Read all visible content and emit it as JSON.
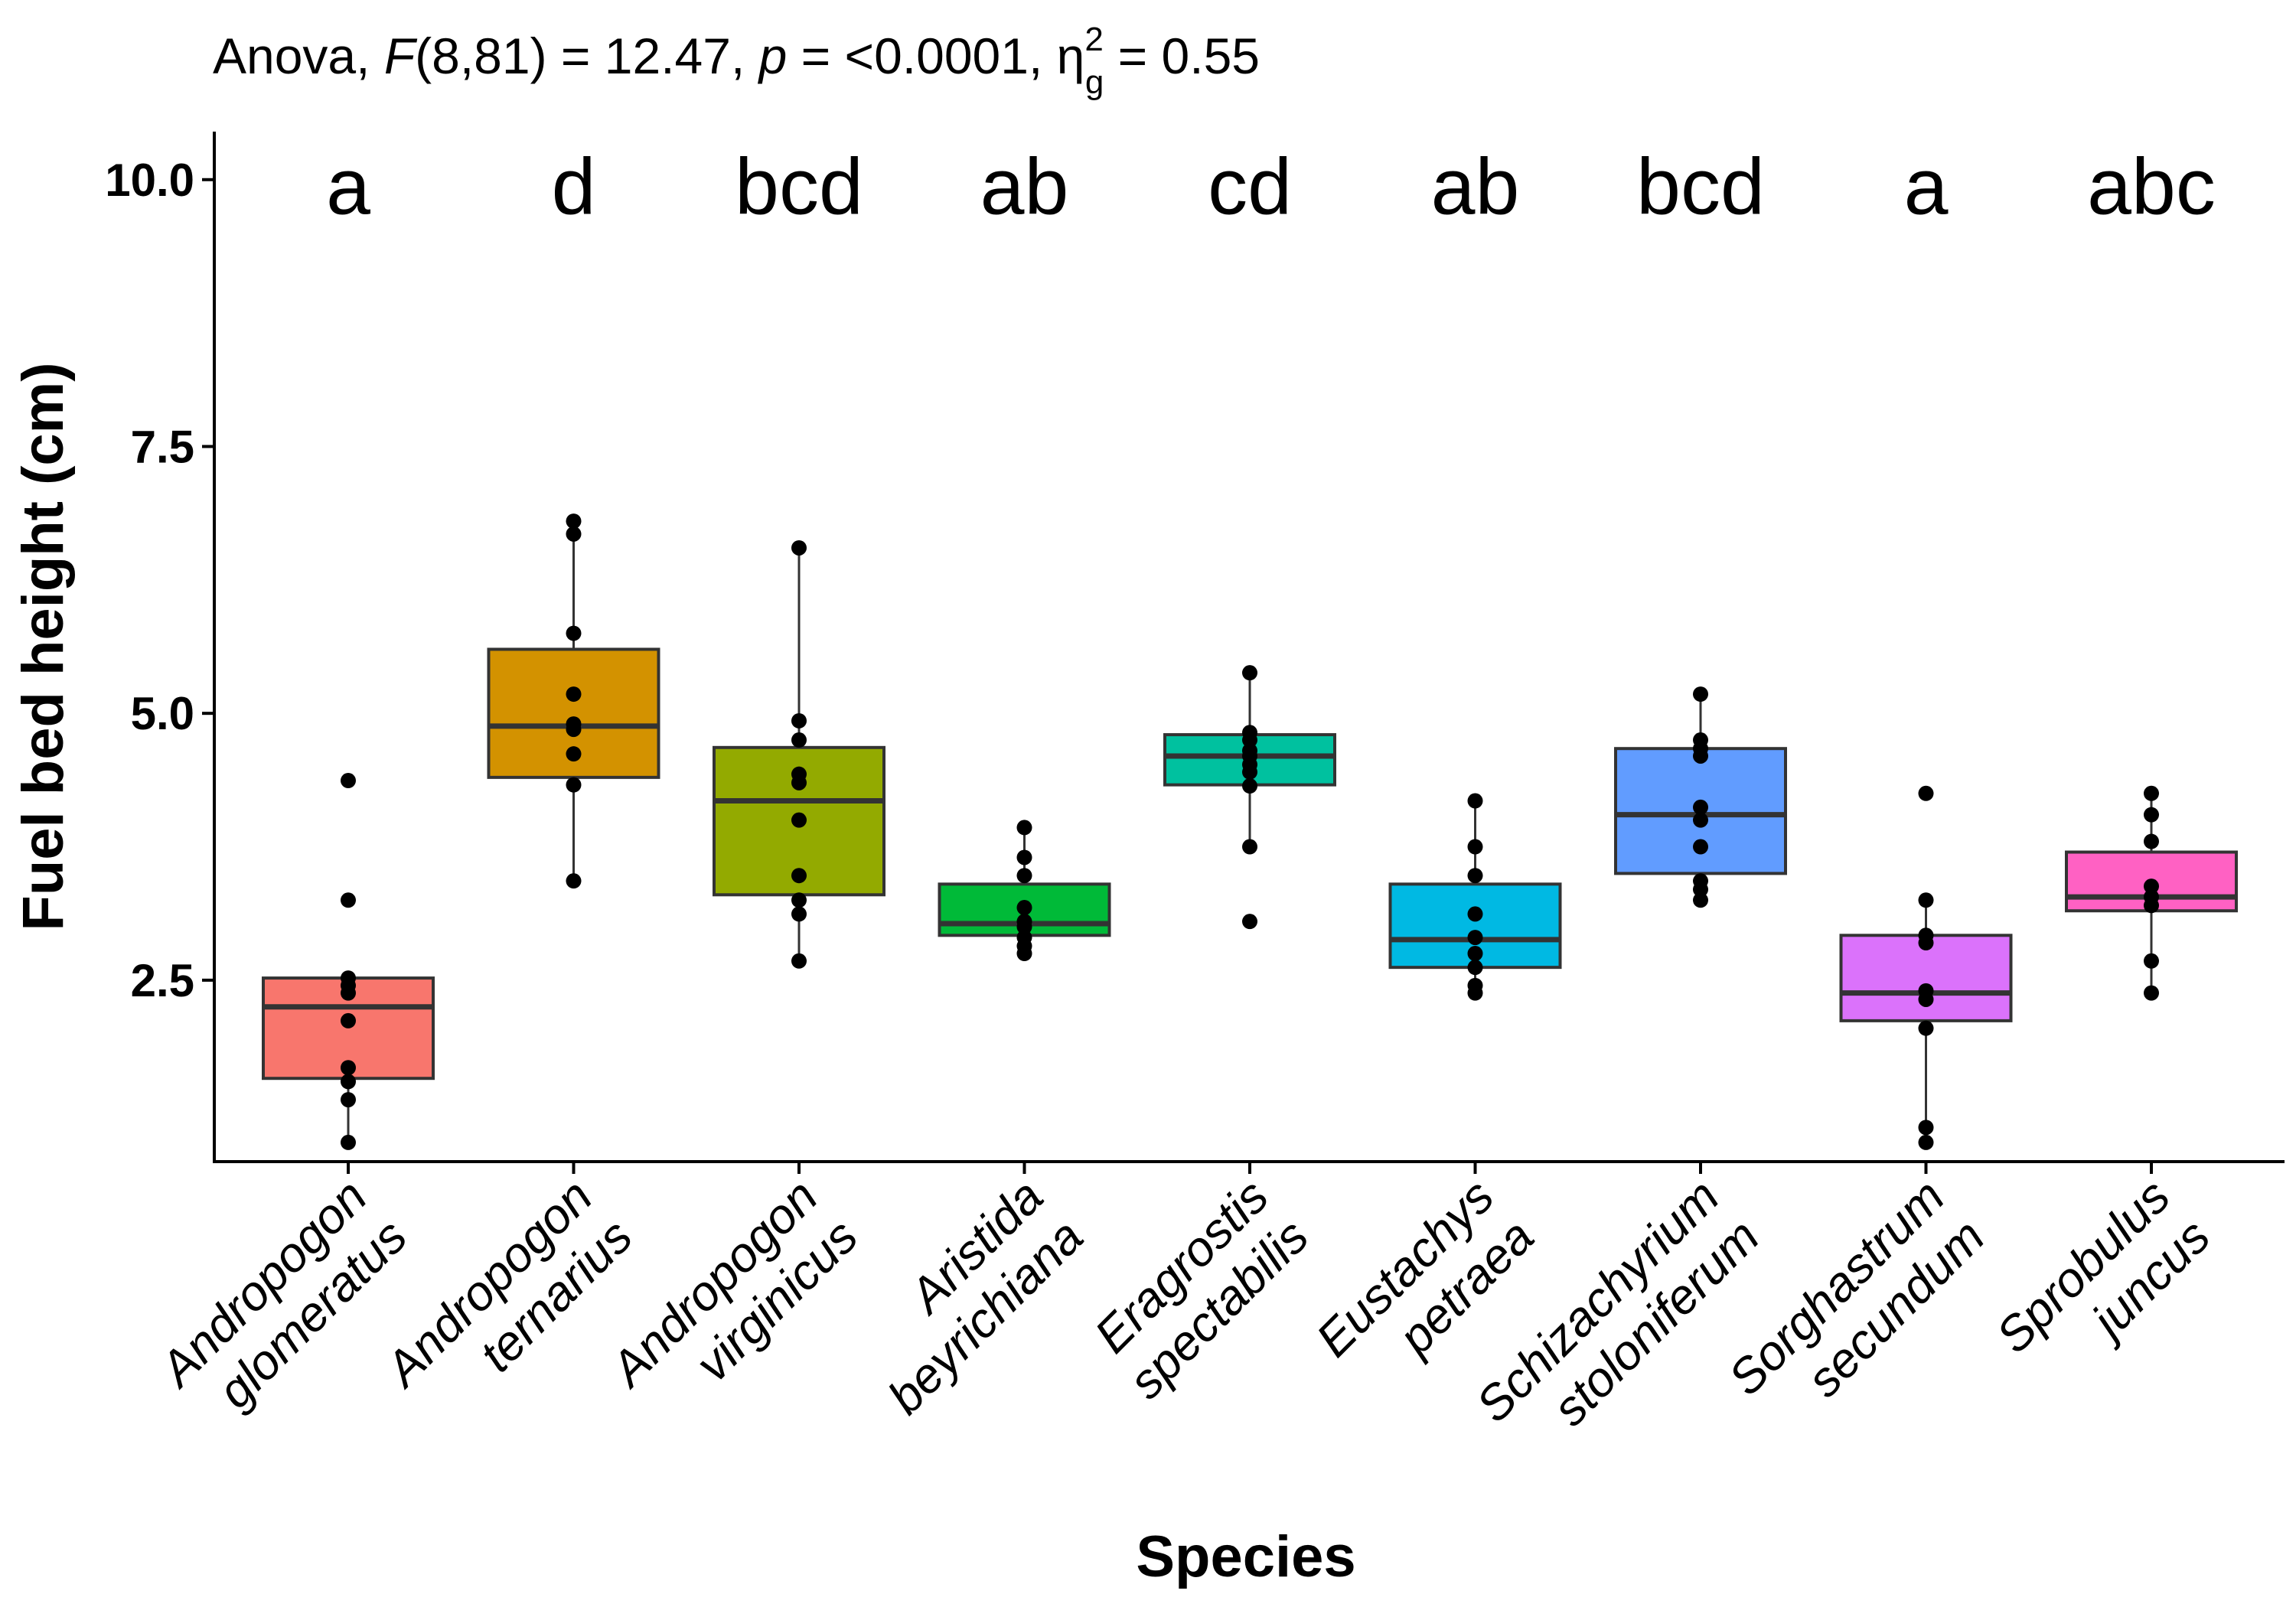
{
  "chart_data": {
    "type": "box",
    "title": {
      "prefix": "Anova, ",
      "f_symbol": "F",
      "f_value": "(8,81) = 12.47, ",
      "p_symbol": "p",
      "p_value": " = <0.0001, ",
      "eta_symbol": "η",
      "eta_sup": "2",
      "eta_sub": "g",
      "eta_value": " = 0.55"
    },
    "xlabel": "Species",
    "ylabel": "Fuel bed height (cm)",
    "ylim": [
      0.8,
      10.45
    ],
    "yticks": [
      {
        "value": 2.5,
        "label": "2.5"
      },
      {
        "value": 5.0,
        "label": "5.0"
      },
      {
        "value": 7.5,
        "label": "7.5"
      },
      {
        "value": 10.0,
        "label": "10.0"
      }
    ],
    "letters_y": 9.95,
    "categories": [
      {
        "name_line1": "Andropogon",
        "name_line2": "glomeratus",
        "letter": "a",
        "color": "#F8766D",
        "q1": 1.58,
        "median": 2.25,
        "q3": 2.52,
        "whisker_low": 0.98,
        "whisker_high": 2.52,
        "points": [
          0.98,
          1.38,
          1.55,
          1.68,
          2.12,
          2.38,
          2.45,
          2.52,
          3.25,
          4.37
        ]
      },
      {
        "name_line1": "Andropogon",
        "name_line2": "ternarius",
        "letter": "d",
        "color": "#D39200",
        "q1": 4.4,
        "median": 4.88,
        "q3": 5.6,
        "whisker_low": 3.43,
        "whisker_high": 6.8,
        "points": [
          3.43,
          4.33,
          4.62,
          4.85,
          4.9,
          5.18,
          5.75,
          6.68,
          6.8
        ]
      },
      {
        "name_line1": "Andropogon",
        "name_line2": "virginicus",
        "letter": "bcd",
        "color": "#93AA00",
        "q1": 3.3,
        "median": 4.18,
        "q3": 4.68,
        "whisker_low": 2.68,
        "whisker_high": 6.55,
        "points": [
          2.68,
          3.12,
          3.25,
          3.48,
          4.0,
          4.35,
          4.43,
          4.75,
          4.93,
          6.55
        ]
      },
      {
        "name_line1": "Aristida",
        "name_line2": "beyrichiana",
        "letter": "ab",
        "color": "#00BA38",
        "q1": 2.92,
        "median": 3.03,
        "q3": 3.4,
        "whisker_low": 2.75,
        "whisker_high": 3.93,
        "points": [
          2.75,
          2.82,
          2.9,
          3.0,
          3.05,
          3.18,
          3.48,
          3.65,
          3.93
        ]
      },
      {
        "name_line1": "Eragrostis",
        "name_line2": "spectabilis",
        "letter": "cd",
        "color": "#00C19F",
        "q1": 4.33,
        "median": 4.6,
        "q3": 4.8,
        "whisker_low": 3.75,
        "whisker_high": 5.38,
        "points": [
          3.05,
          3.75,
          4.32,
          4.45,
          4.52,
          4.6,
          4.65,
          4.75,
          4.82,
          5.38
        ]
      },
      {
        "name_line1": "Eustachys",
        "name_line2": "petraea",
        "letter": "ab",
        "color": "#00B9E3",
        "q1": 2.62,
        "median": 2.88,
        "q3": 3.4,
        "whisker_low": 2.38,
        "whisker_high": 4.18,
        "points": [
          2.38,
          2.45,
          2.62,
          2.75,
          2.9,
          3.12,
          3.48,
          3.75,
          4.18
        ]
      },
      {
        "name_line1": "Schizachyrium",
        "name_line2": "stoloniferum",
        "letter": "bcd",
        "color": "#619CFF",
        "q1": 3.5,
        "median": 4.05,
        "q3": 4.67,
        "whisker_low": 3.25,
        "whisker_high": 5.18,
        "points": [
          3.25,
          3.35,
          3.43,
          3.75,
          4.0,
          4.12,
          4.6,
          4.67,
          4.75,
          5.18
        ]
      },
      {
        "name_line1": "Sorghastrum",
        "name_line2": "secundum",
        "letter": "a",
        "color": "#DB72FB",
        "q1": 2.12,
        "median": 2.38,
        "q3": 2.92,
        "whisker_low": 0.98,
        "whisker_high": 3.25,
        "points": [
          0.98,
          1.12,
          2.05,
          2.32,
          2.4,
          2.85,
          2.92,
          3.25,
          4.25
        ]
      },
      {
        "name_line1": "Sprobulus",
        "name_line2": "juncus",
        "letter": "abc",
        "color": "#FF61C3",
        "q1": 3.15,
        "median": 3.28,
        "q3": 3.7,
        "whisker_low": 2.38,
        "whisker_high": 4.25,
        "points": [
          2.38,
          2.68,
          3.2,
          3.28,
          3.38,
          3.8,
          4.05,
          4.25
        ]
      }
    ]
  }
}
